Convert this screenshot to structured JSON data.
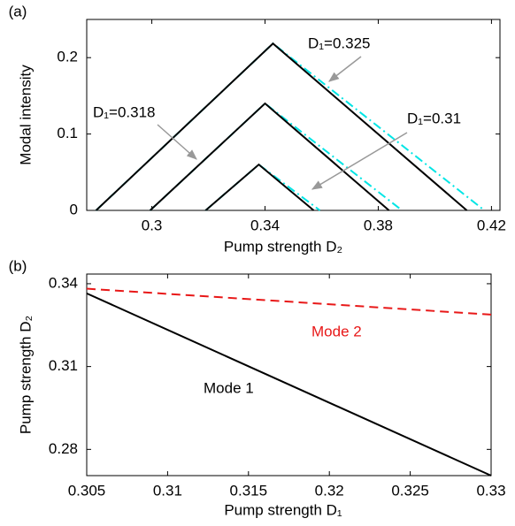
{
  "chart_data": [
    {
      "type": "line",
      "panel_label": "(a)",
      "x_label": "Pump strength D₂",
      "y_label": "Modal intensity",
      "xlim": [
        0.277,
        0.423
      ],
      "ylim": [
        0,
        0.25
      ],
      "xticks": [
        0.3,
        0.34,
        0.38,
        0.42
      ],
      "yticks": [
        0,
        0.1,
        0.2
      ],
      "annotations": [
        "D₁=0.325",
        "D₁=0.318",
        "D₁=0.31"
      ],
      "series": [
        {
          "color": "#00e5e5",
          "style": "dashdot",
          "x": [
            0.2803,
            0.3428,
            0.4175
          ],
          "values": [
            0,
            0.2185,
            0
          ]
        },
        {
          "color": "#000000",
          "style": "solid",
          "x": [
            0.2803,
            0.3428,
            0.4113
          ],
          "values": [
            0,
            0.2185,
            0
          ]
        },
        {
          "color": "#00e5e5",
          "style": "dashdot",
          "x": [
            0.2994,
            0.34,
            0.3884
          ],
          "values": [
            0,
            0.14,
            0
          ]
        },
        {
          "color": "#000000",
          "style": "solid",
          "x": [
            0.2994,
            0.34,
            0.3838
          ],
          "values": [
            0,
            0.14,
            0
          ]
        },
        {
          "color": "#00e5e5",
          "style": "dashdot",
          "x": [
            0.319,
            0.3378,
            0.3594
          ],
          "values": [
            0,
            0.06,
            0
          ]
        },
        {
          "color": "#000000",
          "style": "solid",
          "x": [
            0.319,
            0.3378,
            0.3572
          ],
          "values": [
            0,
            0.06,
            0
          ]
        }
      ]
    },
    {
      "type": "line",
      "panel_label": "(b)",
      "x_label": "Pump strength D₁",
      "y_label": "Pump strength D₂",
      "xlim": [
        0.305,
        0.33
      ],
      "ylim": [
        0.2705,
        0.3435
      ],
      "xticks": [
        0.305,
        0.31,
        0.315,
        0.32,
        0.325,
        0.33
      ],
      "yticks": [
        0.28,
        0.31,
        0.34
      ],
      "annotations": [
        "Mode 1",
        "Mode 2"
      ],
      "series": [
        {
          "color": "#000000",
          "style": "solid",
          "x": [
            0.305,
            0.33
          ],
          "values": [
            0.3365,
            0.2705
          ]
        },
        {
          "color": "#e81818",
          "style": "dashed",
          "x": [
            0.305,
            0.33
          ],
          "values": [
            0.3382,
            0.3288
          ]
        }
      ]
    }
  ]
}
